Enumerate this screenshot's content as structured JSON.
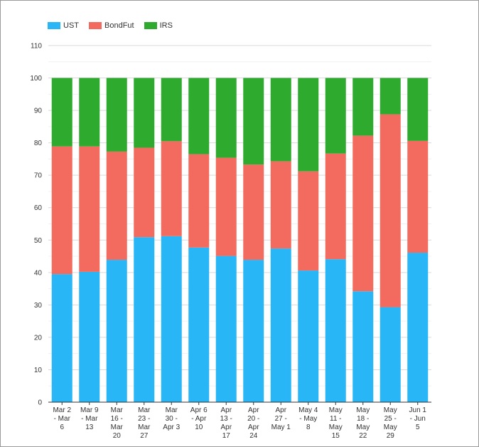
{
  "chart_data": {
    "type": "bar",
    "stacked": true,
    "title": "",
    "xlabel": "",
    "ylabel": "",
    "ylim": [
      0,
      110
    ],
    "yticks": [
      0,
      10,
      20,
      30,
      40,
      50,
      60,
      70,
      80,
      90,
      100,
      110
    ],
    "grid": true,
    "legend_position": "top-left",
    "categories": [
      "Mar 2 - Mar 6",
      "Mar 9 - Mar 13",
      "Mar 16 - Mar 20",
      "Mar 23 - Mar 27",
      "Mar 30 - Apr 3",
      "Apr 6 - Apr 10",
      "Apr 13 - Apr 17",
      "Apr 20 - Apr 24",
      "Apr 27 - May 1",
      "May 4 - May 8",
      "May 11 - May 15",
      "May 18 - May 22",
      "May 25 - May 29",
      "Jun 1 - Jun 5"
    ],
    "category_label_lines": [
      [
        "Mar 2",
        "- Mar",
        "6"
      ],
      [
        "Mar 9",
        "- Mar",
        "13"
      ],
      [
        "Mar",
        "16 -",
        "Mar",
        "20"
      ],
      [
        "Mar",
        "23 -",
        "Mar",
        "27"
      ],
      [
        "Mar",
        "30 -",
        "Apr 3"
      ],
      [
        "Apr 6",
        "- Apr",
        "10"
      ],
      [
        "Apr",
        "13 -",
        "Apr",
        "17"
      ],
      [
        "Apr",
        "20 -",
        "Apr",
        "24"
      ],
      [
        "Apr",
        "27 -",
        "May 1"
      ],
      [
        "May 4",
        "- May",
        "8"
      ],
      [
        "May",
        "11 -",
        "May",
        "15"
      ],
      [
        "May",
        "18 -",
        "May",
        "22"
      ],
      [
        "May",
        "25 -",
        "May",
        "29"
      ],
      [
        "Jun 1",
        "- Jun",
        "5"
      ]
    ],
    "series": [
      {
        "name": "UST",
        "color": "#29b6f6",
        "values": [
          39.5,
          40.2,
          43.9,
          50.9,
          51.2,
          47.7,
          45.1,
          43.9,
          47.4,
          40.6,
          44.1,
          34.2,
          29.3,
          46.1
        ]
      },
      {
        "name": "BondFut",
        "color": "#f26b5e",
        "values": [
          39.4,
          38.7,
          33.4,
          27.6,
          29.3,
          28.8,
          30.3,
          29.4,
          26.9,
          30.6,
          32.6,
          48.0,
          59.5,
          34.5
        ]
      },
      {
        "name": "IRS",
        "color": "#2eab2e",
        "values": [
          21.1,
          21.1,
          22.7,
          21.5,
          19.5,
          23.5,
          24.6,
          26.7,
          25.7,
          28.8,
          23.3,
          17.8,
          11.2,
          19.4
        ]
      }
    ]
  }
}
